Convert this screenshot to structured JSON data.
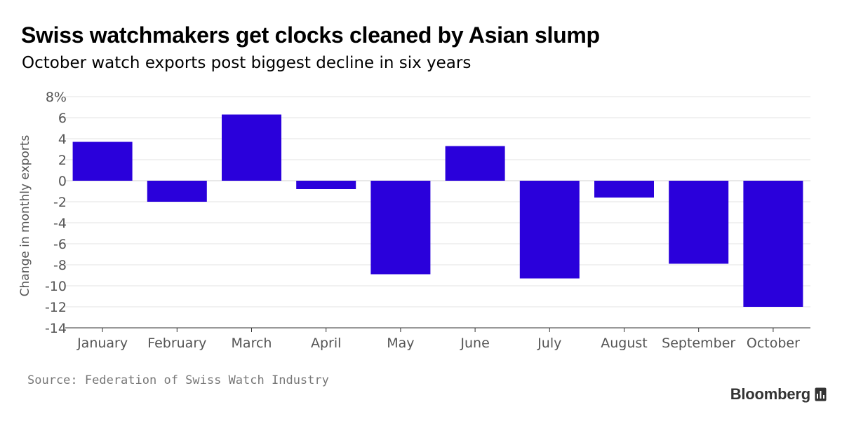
{
  "title": "Swiss watchmakers get clocks cleaned by Asian slump",
  "subtitle": "October watch exports post biggest decline in six years",
  "source": "Source: Federation of Swiss Watch Industry",
  "brand": "Bloomberg",
  "brand_icon": "bloomberg-terminal-icon",
  "colors": {
    "bar": "#2a00db",
    "grid": "#e3e3e3",
    "axis": "#333333",
    "tick_text": "#555555"
  },
  "chart_data": {
    "type": "bar",
    "categories": [
      "January",
      "February",
      "March",
      "April",
      "May",
      "June",
      "July",
      "August",
      "September",
      "October"
    ],
    "values": [
      3.7,
      -2.0,
      6.3,
      -0.8,
      -8.9,
      3.3,
      -9.3,
      -1.6,
      -7.9,
      -12.0
    ],
    "ylabel": "Change in monthly exports",
    "ylim": [
      -14,
      8
    ],
    "yticks": [
      "8%",
      "6",
      "4",
      "2",
      "0",
      "-2",
      "-4",
      "-6",
      "-8",
      "-10",
      "-12",
      "-14"
    ],
    "grid": true,
    "legend": "none"
  }
}
